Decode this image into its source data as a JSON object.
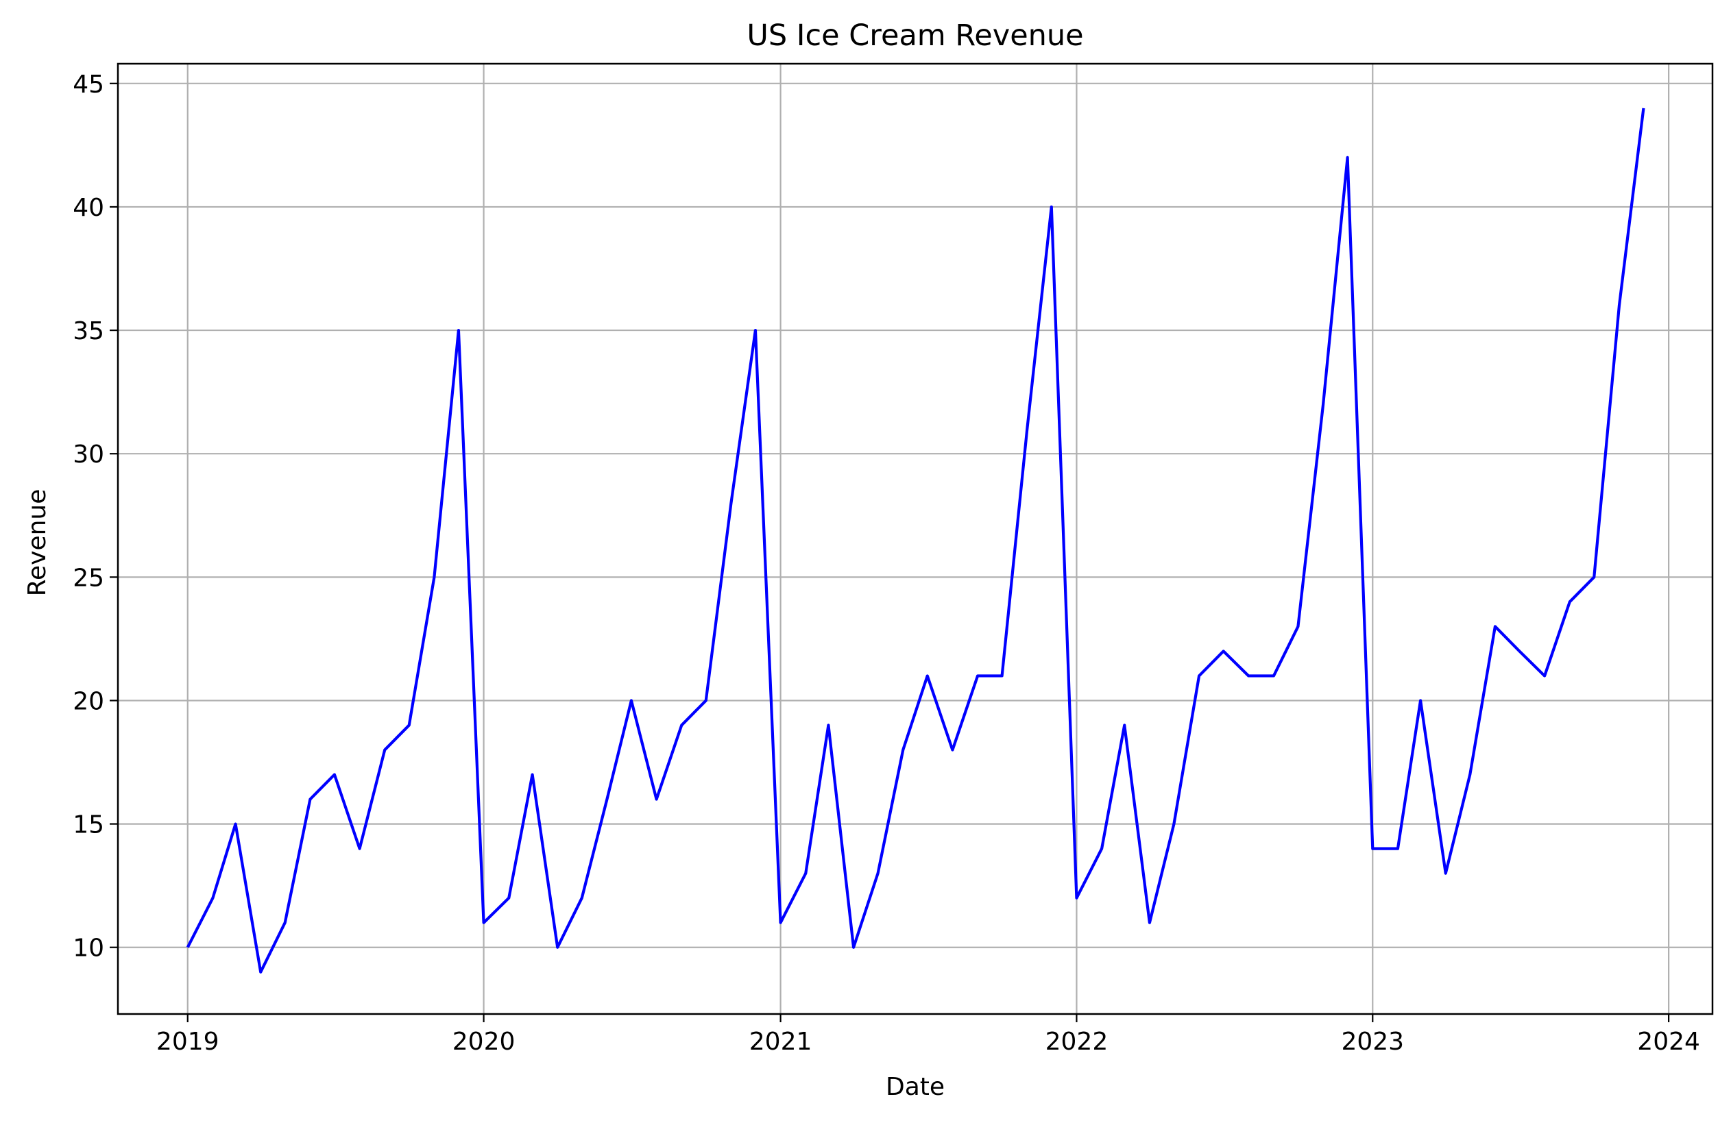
{
  "chart_data": {
    "type": "line",
    "title": "US Ice Cream Revenue",
    "xlabel": "Date",
    "ylabel": "Revenue",
    "grid": true,
    "legend": "none",
    "xlim": [
      "2018-10-07",
      "2024-02-24"
    ],
    "ylim": [
      7.3,
      45.8
    ],
    "x_ticks": [
      "2019",
      "2020",
      "2021",
      "2022",
      "2023",
      "2024"
    ],
    "y_ticks": [
      "10",
      "15",
      "20",
      "25",
      "30",
      "35",
      "40",
      "45"
    ],
    "series": [
      {
        "color": "#0000ff",
        "x": [
          "2019-01",
          "2019-02",
          "2019-03",
          "2019-04",
          "2019-05",
          "2019-06",
          "2019-07",
          "2019-08",
          "2019-09",
          "2019-10",
          "2019-11",
          "2019-12",
          "2020-01",
          "2020-02",
          "2020-03",
          "2020-04",
          "2020-05",
          "2020-06",
          "2020-07",
          "2020-08",
          "2020-09",
          "2020-10",
          "2020-11",
          "2020-12",
          "2021-01",
          "2021-02",
          "2021-03",
          "2021-04",
          "2021-05",
          "2021-06",
          "2021-07",
          "2021-08",
          "2021-09",
          "2021-10",
          "2021-11",
          "2021-12",
          "2022-01",
          "2022-02",
          "2022-03",
          "2022-04",
          "2022-05",
          "2022-06",
          "2022-07",
          "2022-08",
          "2022-09",
          "2022-10",
          "2022-11",
          "2022-12",
          "2023-01",
          "2023-02",
          "2023-03",
          "2023-04",
          "2023-05",
          "2023-06",
          "2023-07",
          "2023-08",
          "2023-09",
          "2023-10",
          "2023-11",
          "2023-12"
        ],
        "values": [
          10,
          12,
          15,
          9,
          11,
          16,
          17,
          14,
          18,
          19,
          25,
          35,
          11,
          12,
          17,
          10,
          12,
          16,
          20,
          16,
          19,
          20,
          28,
          35,
          11,
          13,
          19,
          10,
          13,
          18,
          21,
          18,
          21,
          21,
          31,
          40,
          12,
          14,
          19,
          11,
          15,
          21,
          22,
          21,
          21,
          23,
          32,
          42,
          14,
          14,
          20,
          13,
          17,
          23,
          22,
          21,
          24,
          25,
          36,
          44
        ]
      }
    ]
  }
}
